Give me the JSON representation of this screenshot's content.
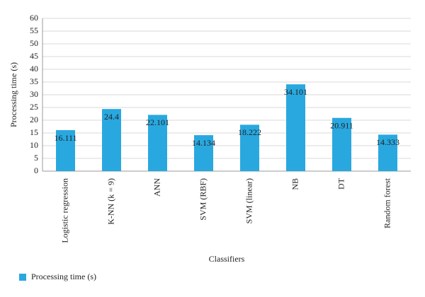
{
  "chart_data": {
    "type": "bar",
    "xlabel": "Classifiers",
    "ylabel": "Processing time (s)",
    "categories": [
      "Logistic regression",
      "K-NN (k = 9)",
      "ANN",
      "SVM (RBF)",
      "SVM (linear)",
      "NB",
      "DT",
      "Random forest"
    ],
    "series": [
      {
        "name": "Processing time (s)",
        "color": "#29a8e0",
        "values": [
          16.111,
          24.4,
          22.101,
          14.134,
          18.222,
          34.101,
          20.911,
          14.333
        ]
      }
    ],
    "ylim": [
      0,
      60
    ],
    "yticks": [
      0,
      5,
      10,
      15,
      20,
      25,
      30,
      35,
      40,
      45,
      50,
      55,
      60
    ],
    "grid": true,
    "legend": "bottom-left"
  }
}
